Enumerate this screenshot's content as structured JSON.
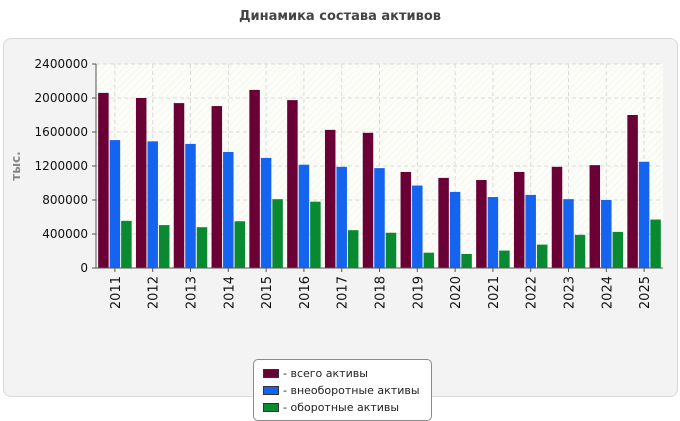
{
  "chart_data": {
    "type": "bar",
    "title": "Динамика состава активов",
    "ylabel": "тыс.",
    "xlabel": "",
    "categories": [
      "2011",
      "2012",
      "2013",
      "2014",
      "2015",
      "2016",
      "2017",
      "2018",
      "2019",
      "2020",
      "2021",
      "2022",
      "2023",
      "2024",
      "2025"
    ],
    "ylim": [
      0,
      2400000
    ],
    "yticks": [
      "0",
      "400000",
      "800000",
      "1200000",
      "1600000",
      "2000000",
      "2400000"
    ],
    "grid": true,
    "legend_position": "bottom",
    "series": [
      {
        "name": "- всего активы",
        "color": "#6a0035",
        "values": [
          2060000,
          2000000,
          1940000,
          1905000,
          2095000,
          1975000,
          1625000,
          1590000,
          1130000,
          1060000,
          1035000,
          1130000,
          1190000,
          1210000,
          1800000
        ]
      },
      {
        "name": "- внеоборотные активы",
        "color": "#1464f0",
        "values": [
          1505000,
          1490000,
          1460000,
          1365000,
          1295000,
          1215000,
          1190000,
          1175000,
          970000,
          895000,
          835000,
          860000,
          810000,
          800000,
          1250000
        ]
      },
      {
        "name": "- оборотные активы",
        "color": "#0a8a30",
        "values": [
          555000,
          505000,
          480000,
          550000,
          810000,
          780000,
          445000,
          415000,
          180000,
          165000,
          205000,
          275000,
          390000,
          425000,
          570000
        ]
      }
    ]
  }
}
